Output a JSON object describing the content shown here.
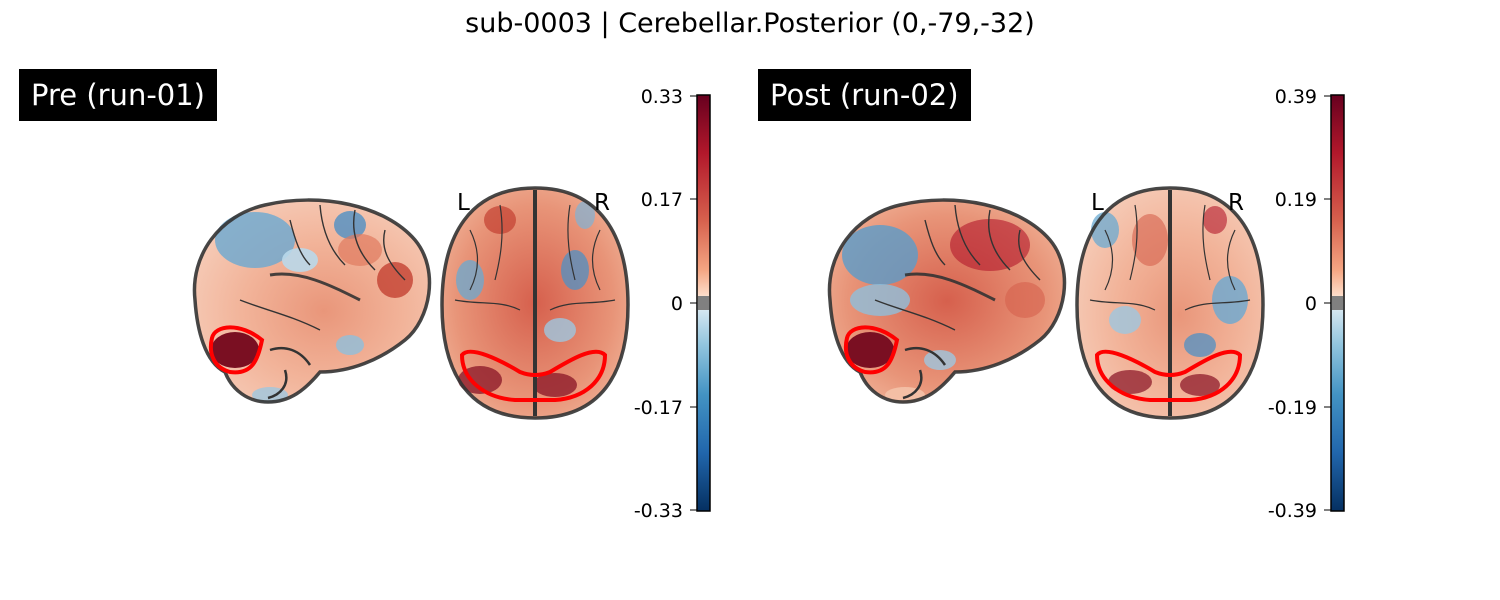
{
  "title": "sub-0003 | Cerebellar.Posterior (0,-79,-32)",
  "panels": [
    {
      "label": "Pre (run-01)",
      "side_left": "L",
      "side_right": "R",
      "colorbar_ticks": [
        "0.33",
        "0.17",
        "0",
        "-0.17",
        "-0.33"
      ]
    },
    {
      "label": "Post (run-02)",
      "side_left": "L",
      "side_right": "R",
      "colorbar_ticks": [
        "0.39",
        "0.19",
        "0",
        "-0.19",
        "-0.39"
      ]
    }
  ],
  "colors": {
    "cmap_top": "#67001f",
    "cmap_red": "#d6604d",
    "cmap_light_red": "#fddbc7",
    "cmap_mid": "#f7f7f7",
    "cmap_light_blue": "#d1e5f0",
    "cmap_blue": "#4393c3",
    "cmap_bottom": "#053061",
    "roi_outline": "#ff0000",
    "brain_outline": "#333333",
    "label_bg": "#000000"
  }
}
